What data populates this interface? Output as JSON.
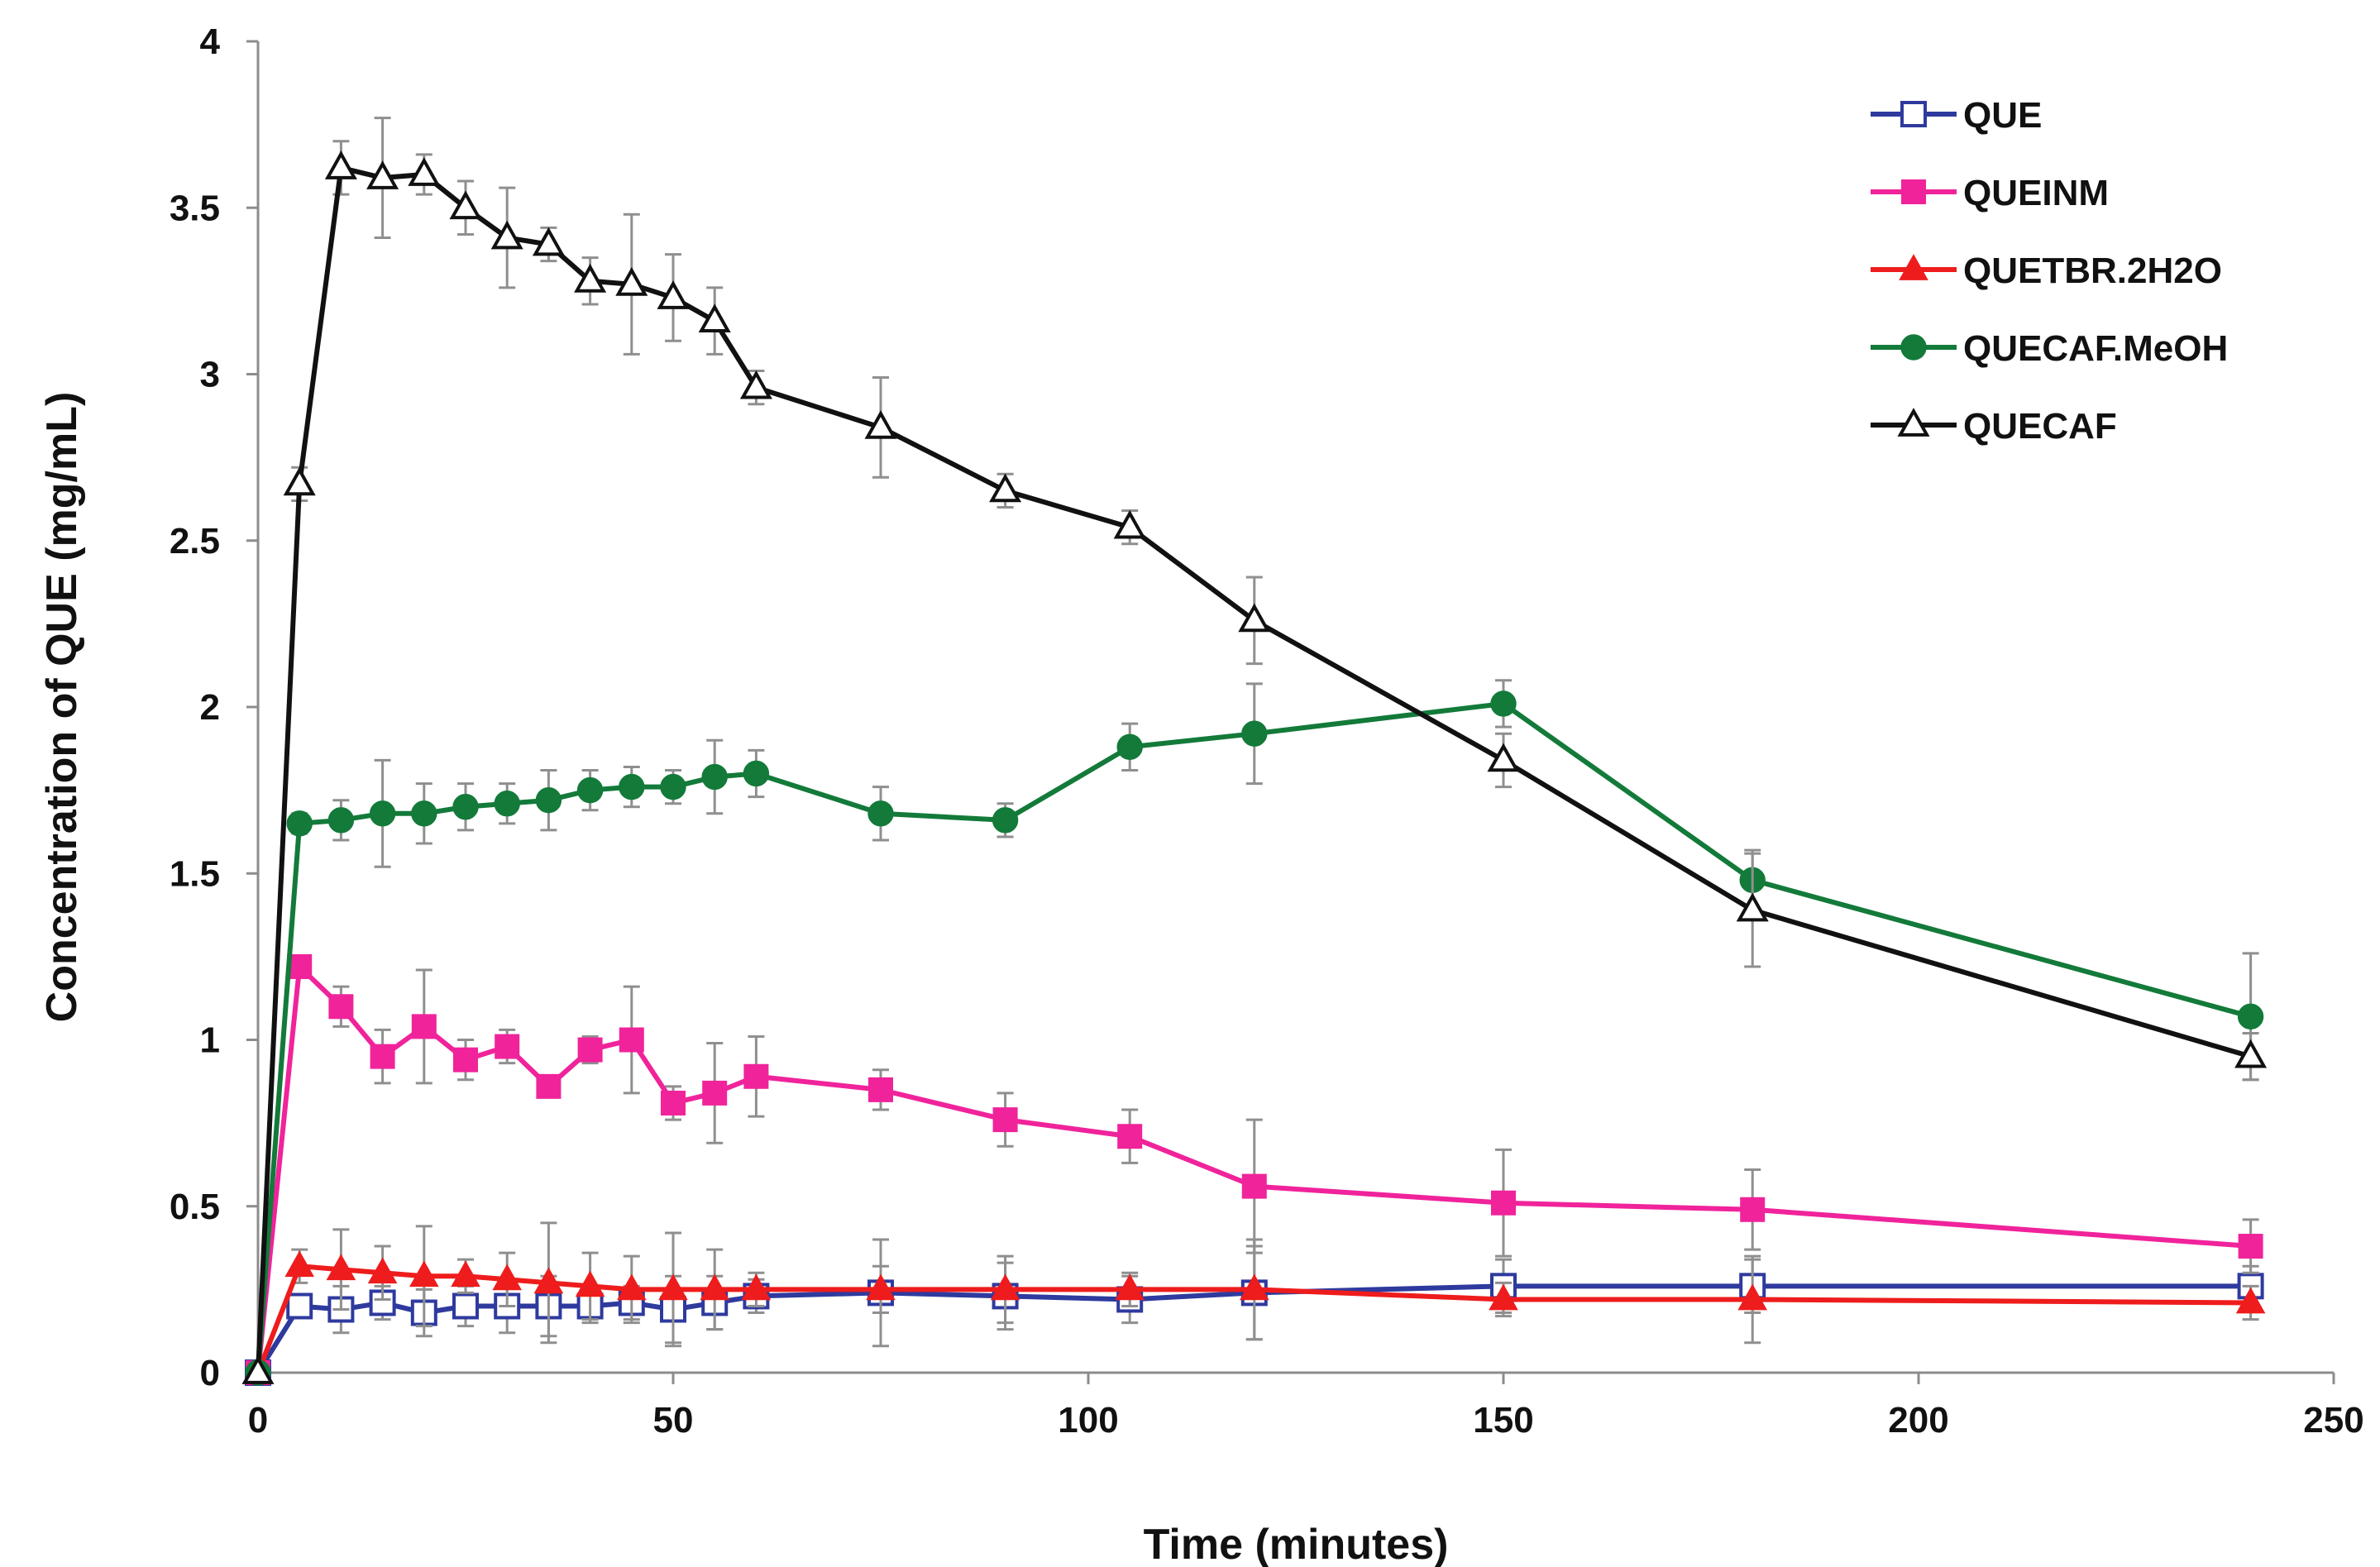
{
  "chart_data": {
    "type": "line",
    "title": "",
    "xlabel": "Time (minutes)",
    "ylabel": "Concentration of QUE (mg/mL)",
    "xlim": [
      0,
      250
    ],
    "ylim": [
      0,
      4
    ],
    "xticks": [
      0,
      50,
      100,
      150,
      200,
      250
    ],
    "yticks": [
      0,
      0.5,
      1,
      1.5,
      2,
      2.5,
      3,
      3.5,
      4
    ],
    "xtick_labels": [
      "0",
      "50",
      "100",
      "150",
      "200",
      "250"
    ],
    "ytick_labels": [
      "0",
      "0.5",
      "1",
      "1.5",
      "2",
      "2.5",
      "3",
      "3.5",
      "4"
    ],
    "grid": false,
    "legend_position": "top-right",
    "series": [
      {
        "name": "QUE",
        "color": "#2e3a9e",
        "marker": "open-square",
        "x": [
          0,
          5,
          10,
          15,
          20,
          25,
          30,
          35,
          40,
          45,
          50,
          55,
          60,
          75,
          90,
          105,
          120,
          150,
          180,
          240
        ],
        "y": [
          0,
          0.2,
          0.19,
          0.21,
          0.18,
          0.2,
          0.2,
          0.2,
          0.2,
          0.21,
          0.19,
          0.21,
          0.23,
          0.24,
          0.23,
          0.22,
          0.24,
          0.26,
          0.26,
          0.26
        ],
        "err": [
          0,
          0.03,
          0.07,
          0.05,
          0.07,
          0.06,
          0.08,
          0.09,
          0.05,
          0.05,
          0.1,
          0.08,
          0.05,
          0.16,
          0.1,
          0.07,
          0.14,
          0.08,
          0.08,
          0.06
        ]
      },
      {
        "name": "QUEINM",
        "color": "#f0239b",
        "marker": "square",
        "x": [
          0,
          5,
          10,
          15,
          20,
          25,
          30,
          35,
          40,
          45,
          50,
          55,
          60,
          75,
          90,
          105,
          120,
          150,
          180,
          240
        ],
        "y": [
          0,
          1.22,
          1.1,
          0.95,
          1.04,
          0.94,
          0.98,
          0.86,
          0.97,
          1.0,
          0.81,
          0.84,
          0.89,
          0.85,
          0.76,
          0.71,
          0.56,
          0.51,
          0.49,
          0.38
        ],
        "err": [
          0,
          0.02,
          0.06,
          0.08,
          0.17,
          0.06,
          0.05,
          0.03,
          0.04,
          0.16,
          0.05,
          0.15,
          0.12,
          0.06,
          0.08,
          0.08,
          0.2,
          0.16,
          0.12,
          0.08
        ]
      },
      {
        "name": "QUETBR.2H2O",
        "color": "#ee1c1c",
        "marker": "triangle",
        "x": [
          0,
          5,
          10,
          15,
          20,
          25,
          30,
          35,
          40,
          45,
          50,
          55,
          60,
          75,
          90,
          105,
          120,
          150,
          180,
          240
        ],
        "y": [
          0,
          0.32,
          0.31,
          0.3,
          0.29,
          0.29,
          0.28,
          0.27,
          0.26,
          0.25,
          0.25,
          0.25,
          0.25,
          0.25,
          0.25,
          0.25,
          0.25,
          0.22,
          0.22,
          0.21
        ],
        "err": [
          0,
          0.05,
          0.12,
          0.08,
          0.15,
          0.05,
          0.08,
          0.18,
          0.1,
          0.1,
          0.17,
          0.12,
          0.05,
          0.07,
          0.1,
          0.05,
          0.15,
          0.05,
          0.13,
          0.05
        ]
      },
      {
        "name": "QUECAF.MeOH",
        "color": "#137a3a",
        "marker": "circle",
        "x": [
          0,
          5,
          10,
          15,
          20,
          25,
          30,
          35,
          40,
          45,
          50,
          55,
          60,
          75,
          90,
          105,
          120,
          150,
          180,
          240
        ],
        "y": [
          0,
          1.65,
          1.66,
          1.68,
          1.68,
          1.7,
          1.71,
          1.72,
          1.75,
          1.76,
          1.76,
          1.79,
          1.8,
          1.68,
          1.66,
          1.88,
          1.92,
          2.01,
          1.48,
          1.07
        ],
        "err": [
          0,
          0.03,
          0.06,
          0.16,
          0.09,
          0.07,
          0.06,
          0.09,
          0.06,
          0.06,
          0.05,
          0.11,
          0.07,
          0.08,
          0.05,
          0.07,
          0.15,
          0.07,
          0.09,
          0.19
        ]
      },
      {
        "name": "QUECAF",
        "color": "#111111",
        "marker": "open-triangle",
        "x": [
          0,
          5,
          10,
          15,
          20,
          25,
          30,
          35,
          40,
          45,
          50,
          55,
          60,
          75,
          90,
          105,
          120,
          150,
          180,
          240
        ],
        "y": [
          0,
          2.67,
          3.62,
          3.59,
          3.6,
          3.5,
          3.41,
          3.39,
          3.28,
          3.27,
          3.23,
          3.16,
          2.96,
          2.84,
          2.65,
          2.54,
          2.26,
          1.84,
          1.39,
          0.95
        ],
        "err": [
          0,
          0.05,
          0.08,
          0.18,
          0.06,
          0.08,
          0.15,
          0.05,
          0.07,
          0.21,
          0.13,
          0.1,
          0.05,
          0.15,
          0.05,
          0.05,
          0.13,
          0.08,
          0.17,
          0.07
        ]
      }
    ]
  }
}
